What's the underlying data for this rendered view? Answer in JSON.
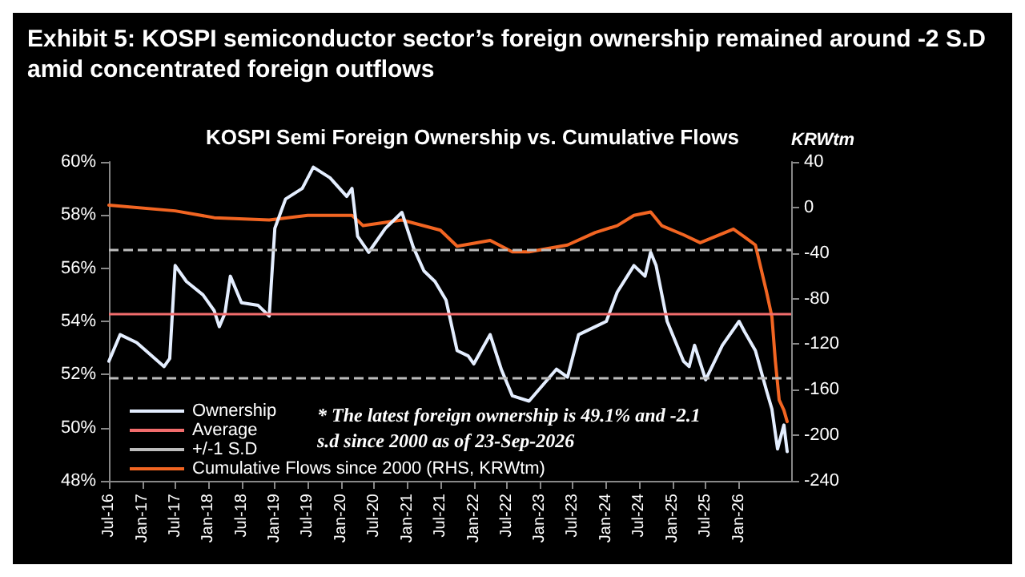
{
  "chart_data": {
    "type": "line",
    "title": "Exhibit 5: KOSPI semiconductor sector’s foreign ownership remained around -2 S.D amid concentrated foreign outflows",
    "subtitle": "KOSPI Semi Foreign Ownership vs. Cumulative Flows",
    "y2label": "KRWtm",
    "annotations": [
      "* The latest foreign ownership is 49.1% and -2.1 s.d since 2000 as of 23-Sep-2026"
    ],
    "series": [
      {
        "name": "Ownership",
        "color": "#e4eeff",
        "x": [
          "2016-07",
          "2016-09",
          "2016-12",
          "2017-05",
          "2017-06",
          "2017-07",
          "2017-09",
          "2017-12",
          "2018-02",
          "2018-03",
          "2018-04",
          "2018-05",
          "2018-07",
          "2018-10",
          "2018-12",
          "2019-01",
          "2019-03",
          "2019-06",
          "2019-08",
          "2019-11",
          "2020-02",
          "2020-03",
          "2020-04",
          "2020-06",
          "2020-09",
          "2020-12",
          "2021-02",
          "2021-04",
          "2021-06",
          "2021-08",
          "2021-10",
          "2021-12",
          "2022-01",
          "2022-04",
          "2022-06",
          "2022-08",
          "2022-11",
          "2023-04",
          "2023-06",
          "2023-08",
          "2023-11",
          "2024-01",
          "2024-03",
          "2024-06",
          "2024-08",
          "2024-09",
          "2024-10",
          "2024-12",
          "2025-03",
          "2025-04",
          "2025-05",
          "2025-07",
          "2025-10",
          "2026-01",
          "2026-02",
          "2026-04",
          "2026-06",
          "2026-07",
          "2026-08",
          "2026-09-05",
          "2026-09-23"
        ],
        "values": [
          52.5,
          53.5,
          53.2,
          52.3,
          52.6,
          56.1,
          55.5,
          55.0,
          54.4,
          53.8,
          54.3,
          55.7,
          54.7,
          54.6,
          54.2,
          57.5,
          58.6,
          59.0,
          59.8,
          59.4,
          58.7,
          59.0,
          57.2,
          56.6,
          57.5,
          58.1,
          56.8,
          55.9,
          55.5,
          54.8,
          52.9,
          52.7,
          52.4,
          53.5,
          52.2,
          51.2,
          51.0,
          52.2,
          51.9,
          53.5,
          53.8,
          54.0,
          55.1,
          56.1,
          55.7,
          56.6,
          56.1,
          54.0,
          52.5,
          52.3,
          53.1,
          51.8,
          53.1,
          54.0,
          53.6,
          52.9,
          51.4,
          50.7,
          49.2,
          50.1,
          49.1
        ]
      },
      {
        "name": "Cumulative Flows since 2000 (RHS, KRWtm)",
        "color": "#f26522",
        "axis": "y2",
        "x": [
          "2016-07",
          "2017-07",
          "2018-02",
          "2018-12",
          "2019-07",
          "2020-03",
          "2020-05",
          "2020-12",
          "2021-07",
          "2021-10",
          "2022-04",
          "2022-08",
          "2022-11",
          "2023-06",
          "2023-11",
          "2024-03",
          "2024-06",
          "2024-09",
          "2024-11",
          "2025-03",
          "2025-06",
          "2025-12",
          "2026-02",
          "2026-04",
          "2026-06",
          "2026-07",
          "2026-07-20",
          "2026-08-10",
          "2026-09-05",
          "2026-09-23"
        ],
        "values": [
          2,
          -3,
          -9,
          -11,
          -7,
          -7,
          -16,
          -11,
          -20,
          -34,
          -29,
          -39,
          -39,
          -33,
          -22,
          -16,
          -7,
          -4,
          -16,
          -24,
          -31,
          -19,
          -26,
          -33,
          -74,
          -96,
          -135,
          -169,
          -178,
          -188
        ]
      }
    ],
    "ref_lines": [
      {
        "axis": "y",
        "value": 54.3,
        "label": "Average",
        "color": "#f26d6d",
        "line_style": "solid"
      },
      {
        "axis": "y",
        "value": 56.7,
        "label": "+/-1 S.D",
        "color": "#bdbdbd",
        "line_style": "dashed"
      },
      {
        "axis": "y",
        "value": 51.9,
        "color": "#bdbdbd",
        "line_style": "dashed"
      }
    ],
    "xlim": [
      "2016-07",
      "2026-10-15"
    ],
    "xticks": [
      {
        "value": "2016-07",
        "label": "Jul-16"
      },
      {
        "value": "2017-01",
        "label": "Jan-17"
      },
      {
        "value": "2017-07",
        "label": "Jul-17"
      },
      {
        "value": "2018-01",
        "label": "Jan-18"
      },
      {
        "value": "2018-07",
        "label": "Jul-18"
      },
      {
        "value": "2019-01",
        "label": "Jan-19"
      },
      {
        "value": "2019-07",
        "label": "Jul-19"
      },
      {
        "value": "2020-01",
        "label": "Jan-20"
      },
      {
        "value": "2020-07",
        "label": "Jul-20"
      },
      {
        "value": "2021-01",
        "label": "Jan-21"
      },
      {
        "value": "2021-07",
        "label": "Jul-21"
      },
      {
        "value": "2022-01",
        "label": "Jan-22"
      },
      {
        "value": "2022-07",
        "label": "Jul-22"
      },
      {
        "value": "2023-01",
        "label": "Jan-23"
      },
      {
        "value": "2023-07",
        "label": "Jul-23"
      },
      {
        "value": "2024-01",
        "label": "Jan-24"
      },
      {
        "value": "2024-07",
        "label": "Jul-24"
      },
      {
        "value": "2025-01",
        "label": "Jan-25"
      },
      {
        "value": "2025-07",
        "label": "Jul-25"
      },
      {
        "value": "2026-01",
        "label": "Jan-26"
      }
    ],
    "ylim": [
      48,
      60
    ],
    "yticks": [
      {
        "value": 48,
        "label": "48%"
      },
      {
        "value": 50,
        "label": "50%"
      },
      {
        "value": 52,
        "label": "52%"
      },
      {
        "value": 54,
        "label": "54%"
      },
      {
        "value": 56,
        "label": "56%"
      },
      {
        "value": 58,
        "label": "58%"
      },
      {
        "value": 60,
        "label": "60%"
      }
    ],
    "y2lim": [
      -240,
      40
    ],
    "y2ticks": [
      -240,
      -200,
      -160,
      -120,
      -80,
      -40,
      0,
      40
    ],
    "legend": "bottom left",
    "grid": false,
    "marker": "none"
  }
}
